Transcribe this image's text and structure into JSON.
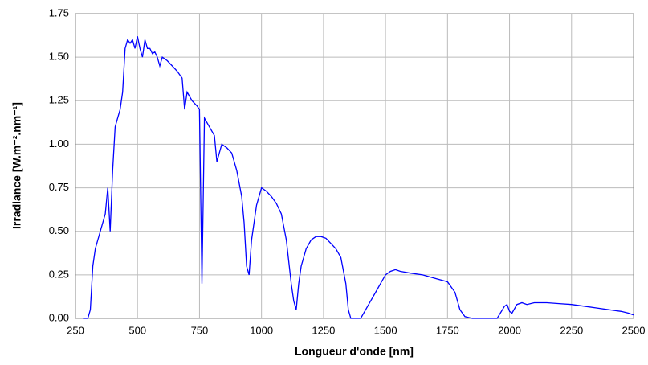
{
  "chart_data": {
    "type": "line",
    "x_label": "Longueur d'onde [nm]",
    "y_label": "Irradiance [W.m⁻².nm⁻¹]",
    "x": [
      280,
      300,
      310,
      320,
      330,
      340,
      350,
      360,
      370,
      380,
      390,
      400,
      410,
      420,
      430,
      440,
      450,
      460,
      470,
      480,
      490,
      500,
      510,
      520,
      530,
      540,
      550,
      560,
      570,
      580,
      590,
      600,
      620,
      640,
      660,
      680,
      690,
      700,
      720,
      740,
      750,
      760,
      770,
      790,
      810,
      820,
      840,
      860,
      880,
      900,
      920,
      930,
      940,
      950,
      960,
      980,
      1000,
      1020,
      1040,
      1060,
      1080,
      1100,
      1120,
      1130,
      1140,
      1150,
      1160,
      1180,
      1200,
      1220,
      1240,
      1260,
      1280,
      1300,
      1320,
      1340,
      1350,
      1360,
      1400,
      1420,
      1440,
      1460,
      1480,
      1500,
      1520,
      1540,
      1560,
      1600,
      1650,
      1700,
      1750,
      1780,
      1800,
      1820,
      1850,
      1950,
      1980,
      1990,
      2000,
      2010,
      2030,
      2050,
      2070,
      2100,
      2150,
      2200,
      2250,
      2300,
      2350,
      2400,
      2450,
      2480,
      2500
    ],
    "series": [
      {
        "color": "#0000ff",
        "values": [
          0,
          0,
          0.05,
          0.3,
          0.4,
          0.45,
          0.5,
          0.55,
          0.6,
          0.75,
          0.5,
          0.85,
          1.1,
          1.15,
          1.2,
          1.3,
          1.55,
          1.6,
          1.58,
          1.6,
          1.55,
          1.62,
          1.55,
          1.5,
          1.6,
          1.55,
          1.55,
          1.52,
          1.53,
          1.5,
          1.45,
          1.5,
          1.48,
          1.45,
          1.42,
          1.38,
          1.2,
          1.3,
          1.25,
          1.22,
          1.2,
          0.2,
          1.15,
          1.1,
          1.05,
          0.9,
          1.0,
          0.98,
          0.95,
          0.85,
          0.7,
          0.55,
          0.3,
          0.25,
          0.45,
          0.65,
          0.75,
          0.73,
          0.7,
          0.66,
          0.6,
          0.45,
          0.2,
          0.1,
          0.05,
          0.2,
          0.3,
          0.4,
          0.45,
          0.47,
          0.47,
          0.46,
          0.43,
          0.4,
          0.35,
          0.2,
          0.05,
          0,
          0,
          0.05,
          0.1,
          0.15,
          0.2,
          0.25,
          0.27,
          0.28,
          0.27,
          0.26,
          0.25,
          0.23,
          0.21,
          0.15,
          0.05,
          0.01,
          0,
          0,
          0.07,
          0.08,
          0.04,
          0.03,
          0.08,
          0.09,
          0.08,
          0.09,
          0.09,
          0.085,
          0.08,
          0.07,
          0.06,
          0.05,
          0.04,
          0.03,
          0.02
        ]
      }
    ],
    "xlim": [
      250,
      2500
    ],
    "xticks": [
      250,
      500,
      750,
      1000,
      1250,
      1500,
      1750,
      2000,
      2250,
      2500
    ],
    "ylim": [
      0,
      1.75
    ],
    "yticks": [
      {
        "value": 0,
        "label": "0.00"
      },
      {
        "value": 0.25,
        "label": "0.25"
      },
      {
        "value": 0.5,
        "label": "0.50"
      },
      {
        "value": 0.75,
        "label": "0.75"
      },
      {
        "value": 1,
        "label": "1.00"
      },
      {
        "value": 1.25,
        "label": "1.25"
      },
      {
        "value": 1.5,
        "label": "1.50"
      },
      {
        "value": 1.75,
        "label": "1.75"
      }
    ],
    "grid": true
  }
}
